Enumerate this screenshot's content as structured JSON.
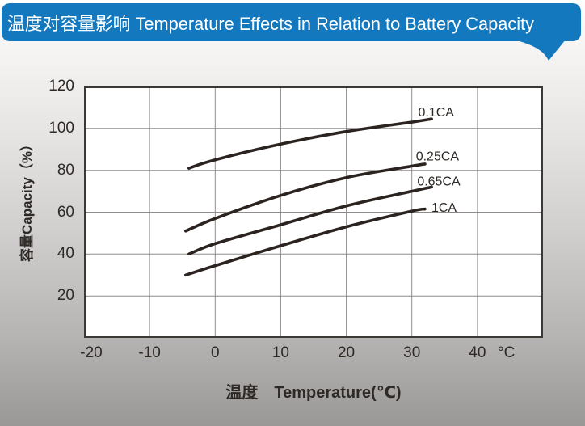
{
  "banner": {
    "title": "温度对容量影响 Temperature Effects in Relation to Battery Capacity",
    "background_color": "#1478be",
    "text_color": "#ffffff"
  },
  "chart_data": {
    "type": "line",
    "title": "",
    "xlabel": "温度　Temperature(℃)",
    "ylabel": "容量Capacity（%）",
    "x_unit_suffix": "°C",
    "xlim": [
      -20,
      50
    ],
    "ylim": [
      0,
      120
    ],
    "x_ticks": [
      -20,
      -10,
      0,
      10,
      20,
      30,
      40
    ],
    "y_ticks": [
      120,
      100,
      80,
      60,
      40,
      20
    ],
    "grid": true,
    "legend_position": "inline-labels-right",
    "series": [
      {
        "name": "0.1CA",
        "points": [
          [
            -4,
            81
          ],
          [
            0,
            85
          ],
          [
            10,
            92.5
          ],
          [
            20,
            98.5
          ],
          [
            30,
            103
          ],
          [
            33,
            104.5
          ]
        ],
        "label_at": [
          33.7,
          108
        ]
      },
      {
        "name": "0.25CA",
        "points": [
          [
            -4.5,
            51
          ],
          [
            0,
            57
          ],
          [
            10,
            68
          ],
          [
            20,
            76.5
          ],
          [
            30,
            82
          ],
          [
            32,
            83
          ]
        ],
        "label_at": [
          33.9,
          87
        ]
      },
      {
        "name": "0.65CA",
        "points": [
          [
            -4,
            40
          ],
          [
            0,
            45
          ],
          [
            10,
            54
          ],
          [
            20,
            63
          ],
          [
            30,
            70
          ],
          [
            33,
            72
          ]
        ],
        "label_at": [
          34.1,
          75
        ]
      },
      {
        "name": "1CA",
        "points": [
          [
            -4.5,
            30
          ],
          [
            0,
            34.5
          ],
          [
            10,
            44
          ],
          [
            20,
            53
          ],
          [
            30,
            60.5
          ],
          [
            32,
            61.5
          ]
        ],
        "label_at": [
          34.9,
          62.5
        ]
      }
    ],
    "colors": {
      "line": "#2b2320",
      "grid": "#8f8c8b",
      "plot_border": "#3c3836",
      "plot_background": "#ffffff",
      "text": "#2d2926"
    }
  }
}
